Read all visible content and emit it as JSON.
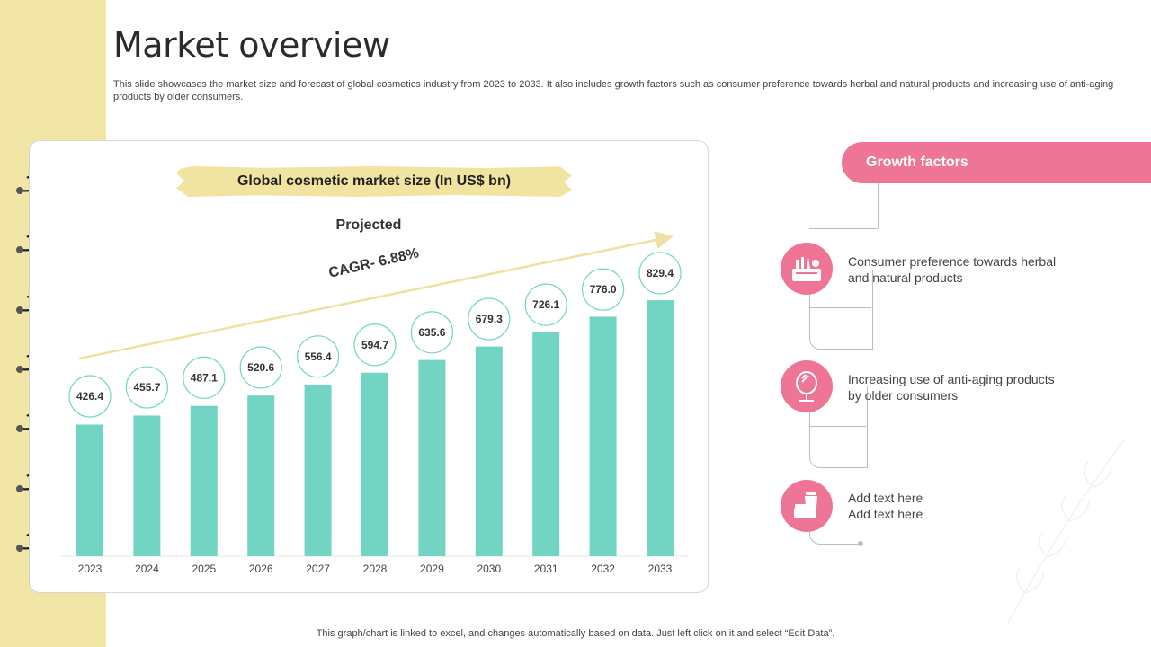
{
  "page": {
    "title": "Market overview",
    "description": "This slide showcases the market size and forecast of global cosmetics industry from 2023 to 2033. It also includes growth factors such as consumer preference towards herbal and natural products and increasing use of anti-aging products by older consumers.",
    "footer": "This graph/chart is linked to excel,  and changes automatically based on data. Just left click on it and select “Edit Data”."
  },
  "colors": {
    "bar": "#72d4c2",
    "accent_pink": "#ee7596",
    "strip_yellow": "#f1e6a6",
    "trend_line": "#efe1a1"
  },
  "chart_data": {
    "type": "bar",
    "title": "Global cosmetic market size (In US$ bn)",
    "subtitle": "Projected",
    "annotation": "CAGR- 6.88%",
    "categories": [
      "2023",
      "2024",
      "2025",
      "2026",
      "2027",
      "2028",
      "2029",
      "2030",
      "2031",
      "2032",
      "2033"
    ],
    "values": [
      426.4,
      455.7,
      487.1,
      520.6,
      556.4,
      594.7,
      635.6,
      679.3,
      726.1,
      776.0,
      829.4
    ],
    "value_labels": [
      "426.4",
      "455.7",
      "487.1",
      "520.6",
      "556.4",
      "594.7",
      "635.6",
      "679.3",
      "726.1",
      "776.0",
      "829.4"
    ],
    "xlabel": "",
    "ylabel": "",
    "ylim": [
      0,
      900
    ],
    "grid": false
  },
  "growth_factors": {
    "header": "Growth factors",
    "items": [
      {
        "icon": "makeup-kit-icon",
        "line1": "Consumer preference towards herbal",
        "line2": "and natural products"
      },
      {
        "icon": "vanity-mirror-icon",
        "line1": "Increasing use of anti-aging products",
        "line2": "by older consumers"
      },
      {
        "icon": "cream-tube-icon",
        "line1": "Add text here",
        "line2": "Add text here"
      }
    ]
  }
}
